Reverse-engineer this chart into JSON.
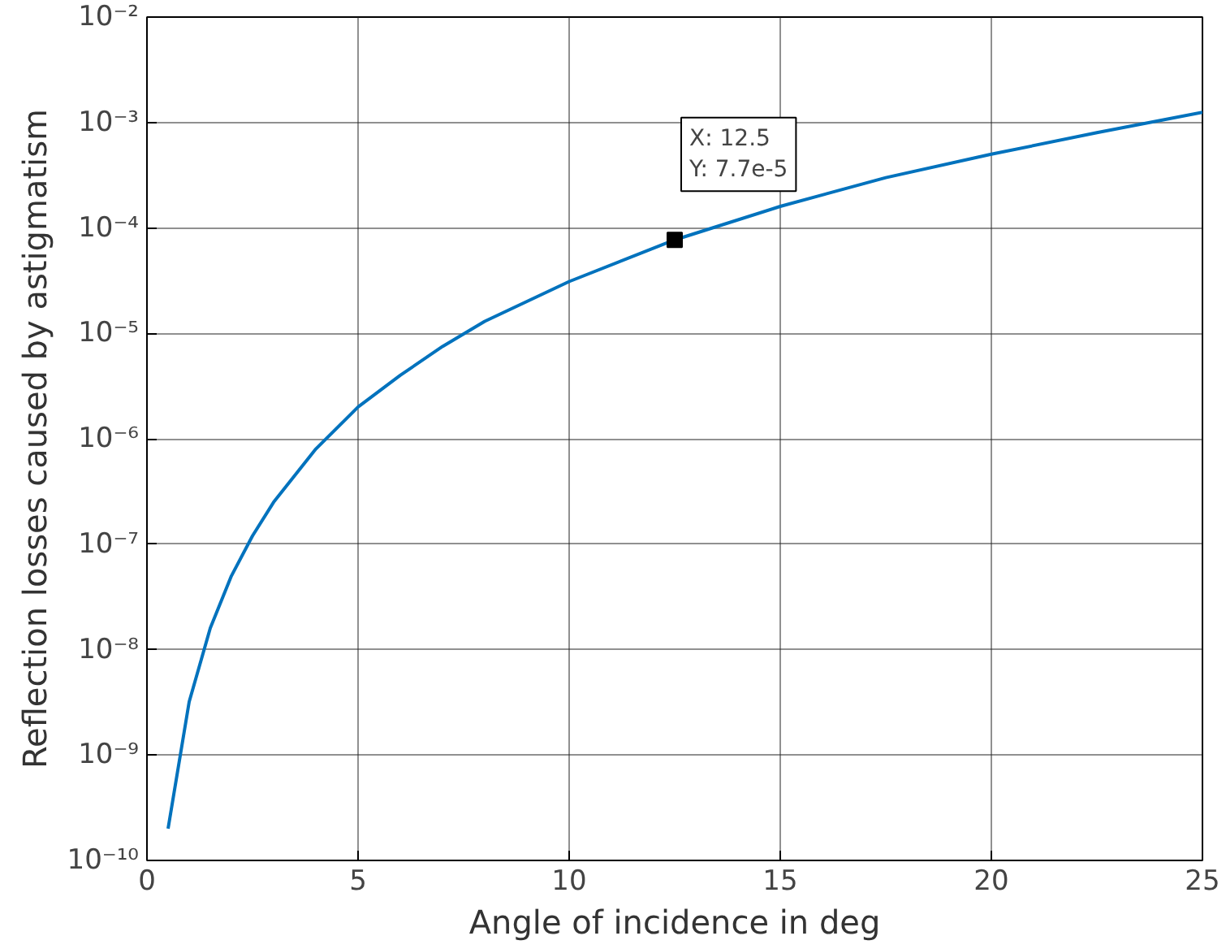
{
  "chart_data": {
    "type": "line",
    "xlabel": "Angle of incidence in deg",
    "ylabel": "Reflection losses caused by astigmatism",
    "log": "y",
    "grid": true,
    "marker": "none",
    "line_style": "solid",
    "x": [
      0.5,
      1,
      1.5,
      2,
      2.5,
      3,
      4,
      5,
      6,
      7,
      8,
      10,
      12.5,
      15,
      17.5,
      20,
      22.5,
      25
    ],
    "series": [
      {
        "color": "#0072bd",
        "values": [
          2e-10,
          3.2e-09,
          1.6e-08,
          5e-08,
          1.2e-07,
          2.5e-07,
          8e-07,
          2e-06,
          4e-06,
          7.5e-06,
          1.3e-05,
          3.1e-05,
          7.7e-05,
          0.00016,
          0.0003,
          0.0005,
          0.0008,
          0.00125
        ]
      }
    ],
    "xlim": [
      0,
      25
    ],
    "xticks": [
      0,
      5,
      10,
      15,
      20,
      25
    ],
    "ylim": [
      1e-10,
      0.01
    ],
    "yticks": [
      {
        "value": 1e-10,
        "label": "10⁻¹⁰"
      },
      {
        "value": 1e-09,
        "label": "10⁻⁹"
      },
      {
        "value": 1e-08,
        "label": "10⁻⁸"
      },
      {
        "value": 1e-07,
        "label": "10⁻⁷"
      },
      {
        "value": 1e-06,
        "label": "10⁻⁶"
      },
      {
        "value": 1e-05,
        "label": "10⁻⁵"
      },
      {
        "value": 0.0001,
        "label": "10⁻⁴"
      },
      {
        "value": 0.001,
        "label": "10⁻³"
      },
      {
        "value": 0.01,
        "label": "10⁻²"
      }
    ],
    "annotations": [
      {
        "text": "X: 12.5\nY: 7.7e-5",
        "x": 12.5,
        "y": 7.7e-05
      }
    ]
  }
}
